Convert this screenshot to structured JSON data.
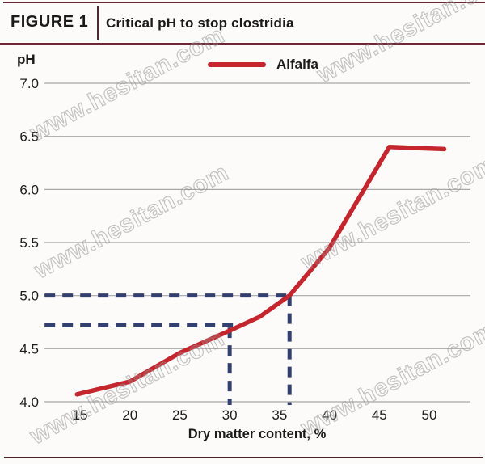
{
  "header": {
    "figure_label": "FIGURE 1",
    "title": "Critical pH to stop clostridia"
  },
  "watermark": {
    "text": "www.hesitan.com"
  },
  "chart_data": {
    "type": "line",
    "title": "Critical pH to stop clostridia",
    "xlabel": "Dry matter content, %",
    "ylabel": "pH",
    "xlim": [
      11.4,
      55.2
    ],
    "ylim": [
      4.0,
      7.0
    ],
    "xticks": [
      15,
      20,
      25,
      30,
      35,
      40,
      45,
      50
    ],
    "yticks": [
      7.0,
      6.5,
      6.0,
      5.5,
      5.0,
      4.5,
      4.0
    ],
    "grid": "horizontal",
    "legend_position": "top-center",
    "series": [
      {
        "name": "Alfalfa",
        "color": "#c5262e",
        "points": [
          [
            14.7,
            4.07
          ],
          [
            20,
            4.19
          ],
          [
            25,
            4.46
          ],
          [
            30,
            4.67
          ],
          [
            33,
            4.8
          ],
          [
            36,
            5.0
          ],
          [
            40,
            5.45
          ],
          [
            46,
            6.4
          ],
          [
            51.5,
            6.38
          ]
        ]
      }
    ],
    "annotations": {
      "color": "#333f6e",
      "dashed_h": [
        {
          "ph": 5.0,
          "x_from": 11.45,
          "x_to": 36.0
        },
        {
          "ph": 4.72,
          "x_from": 11.45,
          "x_to": 30.45
        }
      ],
      "dashed_v": [
        {
          "x": 30.0,
          "ph_from": 4.7,
          "ph_to": 3.97
        },
        {
          "x": 36.0,
          "ph_from": 5.0,
          "ph_to": 3.97
        }
      ]
    }
  },
  "colors": {
    "accent_red": "#c5262e",
    "annotation_navy": "#333f6e",
    "rule_maroon": "#6e2736",
    "gridline_gray": "#a7a7a7"
  }
}
